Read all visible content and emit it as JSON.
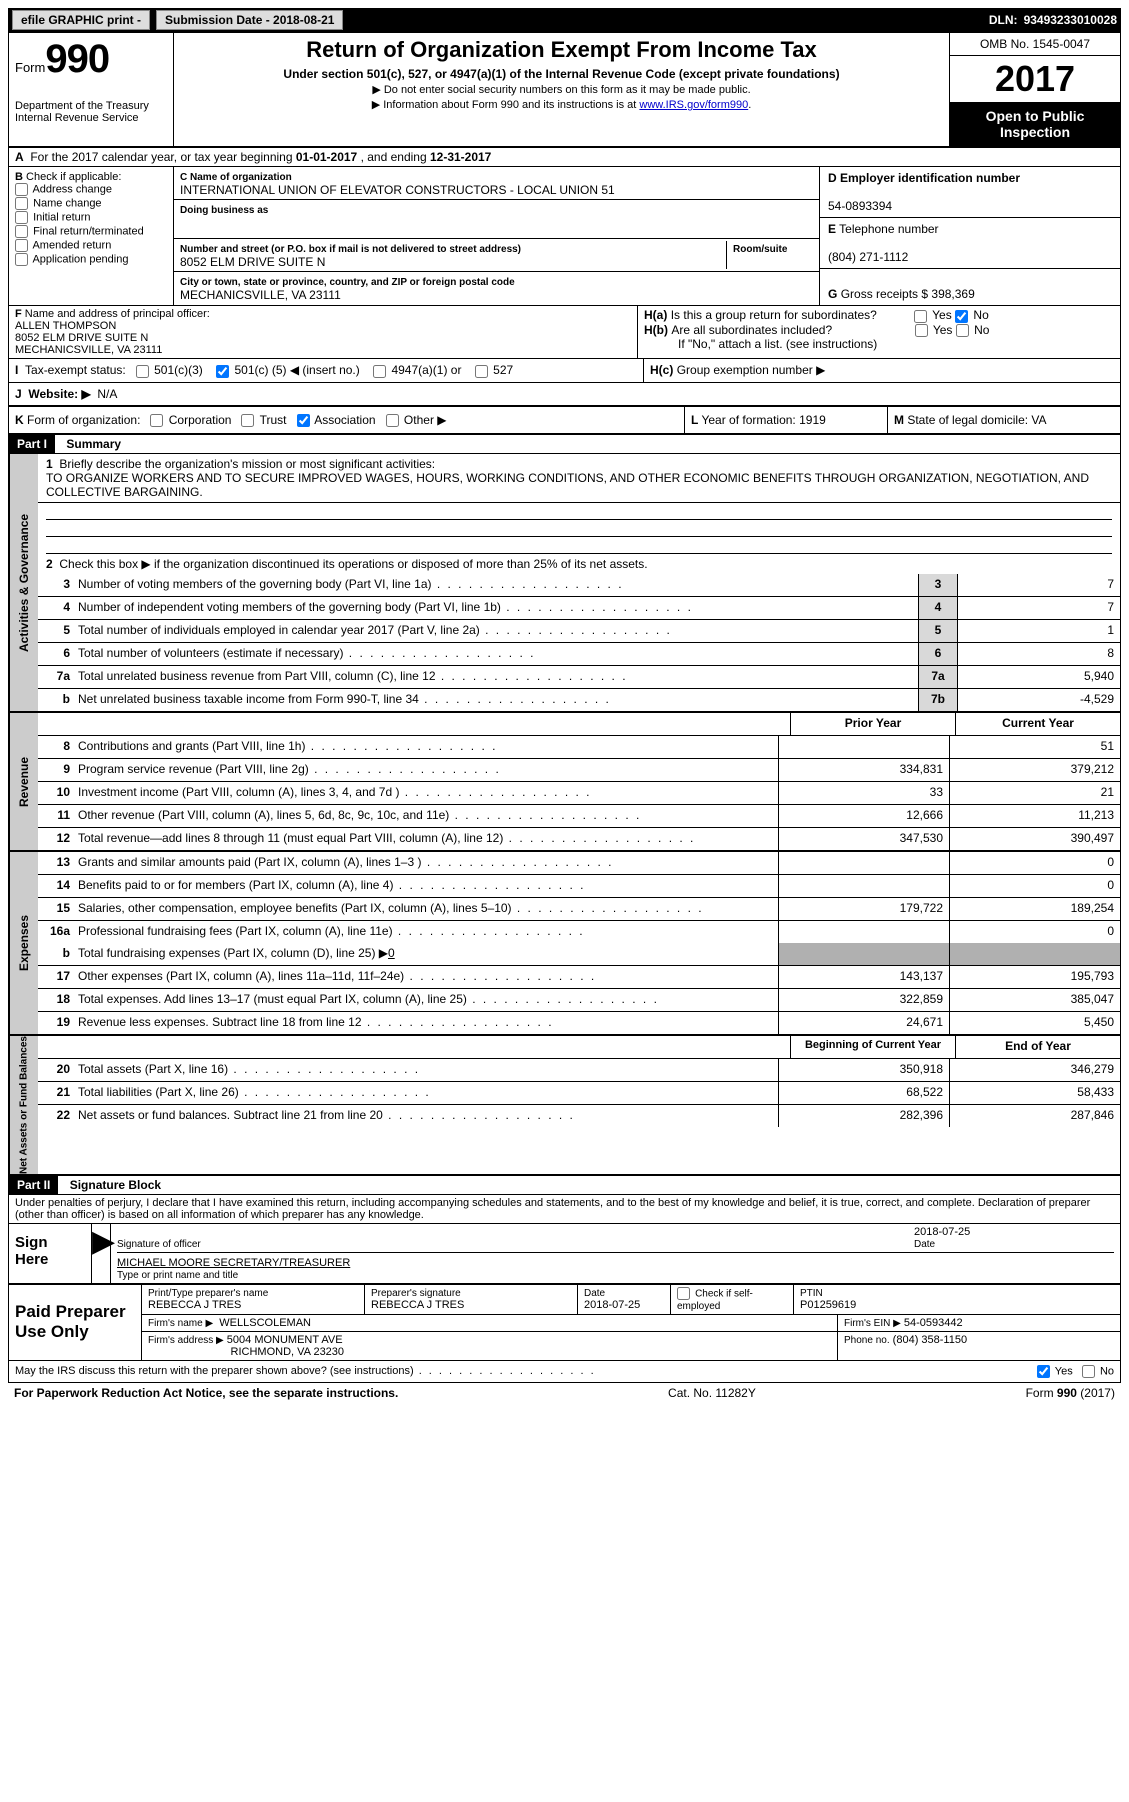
{
  "topbar": {
    "efile": "efile GRAPHIC print -",
    "subdate_lbl": "Submission Date - 2018-08-21",
    "dln_lbl": "DLN:",
    "dln": "93493233010028"
  },
  "header": {
    "form_word": "Form",
    "form_no": "990",
    "dept1": "Department of the Treasury",
    "dept2": "Internal Revenue Service",
    "title": "Return of Organization Exempt From Income Tax",
    "sub": "Under section 501(c), 527, or 4947(a)(1) of the Internal Revenue Code (except private foundations)",
    "note1": "▶ Do not enter social security numbers on this form as it may be made public.",
    "note2_pre": "▶ Information about Form 990 and its instructions is at ",
    "note2_link": "www.IRS.gov/form990",
    "omb": "OMB No. 1545-0047",
    "year": "2017",
    "open1": "Open to Public",
    "open2": "Inspection"
  },
  "A": {
    "text_pre": "For the 2017 calendar year, or tax year beginning ",
    "begin": "01-01-2017",
    "mid": " , and ending ",
    "end": "12-31-2017"
  },
  "B": {
    "hdr": "Check if applicable:",
    "opts": [
      "Address change",
      "Name change",
      "Initial return",
      "Final return/terminated",
      "Amended return",
      "Application pending"
    ]
  },
  "C": {
    "name_lbl": "Name of organization",
    "name": "INTERNATIONAL UNION OF ELEVATOR CONSTRUCTORS - LOCAL UNION 51",
    "dba_lbl": "Doing business as",
    "dba": "",
    "street_lbl": "Number and street (or P.O. box if mail is not delivered to street address)",
    "room_lbl": "Room/suite",
    "street": "8052 ELM DRIVE SUITE N",
    "city_lbl": "City or town, state or province, country, and ZIP or foreign postal code",
    "city": "MECHANICSVILLE, VA  23111"
  },
  "D": {
    "ein_lbl": "Employer identification number",
    "ein": "54-0893394",
    "tel_lbl": "Telephone number",
    "tel": "(804) 271-1112",
    "gross_lbl": "Gross receipts $",
    "gross": "398,369"
  },
  "F": {
    "lbl": "Name and address of principal officer:",
    "name": "ALLEN THOMPSON",
    "addr1": "8052 ELM DRIVE SUITE N",
    "addr2": "MECHANICSVILLE, VA  23111"
  },
  "H": {
    "a_lbl": "Is this a group return for subordinates?",
    "b_lbl": "Are all subordinates included?",
    "ifno": "If \"No,\" attach a list. (see instructions)",
    "c_lbl": "Group exemption number ▶",
    "yes": "Yes",
    "no": "No"
  },
  "I": {
    "lbl": "Tax-exempt status:",
    "o1": "501(c)(3)",
    "o2_pre": "501(c) (",
    "o2_val": "5",
    "o2_post": ") ◀ (insert no.)",
    "o3": "4947(a)(1) or",
    "o4": "527"
  },
  "J": {
    "lbl": "Website: ▶",
    "val": "N/A"
  },
  "K": {
    "lbl": "Form of organization:",
    "opts": [
      "Corporation",
      "Trust",
      "Association",
      "Other ▶"
    ],
    "checked": 2,
    "L_lbl": "Year of formation:",
    "L_val": "1919",
    "M_lbl": "State of legal domicile:",
    "M_val": "VA"
  },
  "part1": {
    "hdr": "Part I",
    "title": "Summary"
  },
  "mission": {
    "q": "Briefly describe the organization's mission or most significant activities:",
    "text": "TO ORGANIZE WORKERS AND TO SECURE IMPROVED WAGES, HOURS, WORKING CONDITIONS, AND OTHER ECONOMIC BENEFITS THROUGH ORGANIZATION, NEGOTIATION, AND COLLECTIVE BARGAINING."
  },
  "gov": {
    "side": "Activities & Governance",
    "l2": "Check this box ▶  if the organization discontinued its operations or disposed of more than 25% of its net assets.",
    "rows": [
      {
        "n": "3",
        "d": "Number of voting members of the governing body (Part VI, line 1a)",
        "c": "3",
        "v": "7"
      },
      {
        "n": "4",
        "d": "Number of independent voting members of the governing body (Part VI, line 1b)",
        "c": "4",
        "v": "7"
      },
      {
        "n": "5",
        "d": "Total number of individuals employed in calendar year 2017 (Part V, line 2a)",
        "c": "5",
        "v": "1"
      },
      {
        "n": "6",
        "d": "Total number of volunteers (estimate if necessary)",
        "c": "6",
        "v": "8"
      },
      {
        "n": "7a",
        "d": "Total unrelated business revenue from Part VIII, column (C), line 12",
        "c": "7a",
        "v": "5,940"
      },
      {
        "n": "b",
        "d": "Net unrelated business taxable income from Form 990-T, line 34",
        "c": "7b",
        "v": "-4,529"
      }
    ]
  },
  "pycy": {
    "prior": "Prior Year",
    "curr": "Current Year"
  },
  "rev": {
    "side": "Revenue",
    "rows": [
      {
        "n": "8",
        "d": "Contributions and grants (Part VIII, line 1h)",
        "p": "",
        "c": "51"
      },
      {
        "n": "9",
        "d": "Program service revenue (Part VIII, line 2g)",
        "p": "334,831",
        "c": "379,212"
      },
      {
        "n": "10",
        "d": "Investment income (Part VIII, column (A), lines 3, 4, and 7d )",
        "p": "33",
        "c": "21"
      },
      {
        "n": "11",
        "d": "Other revenue (Part VIII, column (A), lines 5, 6d, 8c, 9c, 10c, and 11e)",
        "p": "12,666",
        "c": "11,213"
      },
      {
        "n": "12",
        "d": "Total revenue—add lines 8 through 11 (must equal Part VIII, column (A), line 12)",
        "p": "347,530",
        "c": "390,497"
      }
    ]
  },
  "exp": {
    "side": "Expenses",
    "rows": [
      {
        "n": "13",
        "d": "Grants and similar amounts paid (Part IX, column (A), lines 1–3 )",
        "p": "",
        "c": "0"
      },
      {
        "n": "14",
        "d": "Benefits paid to or for members (Part IX, column (A), line 4)",
        "p": "",
        "c": "0"
      },
      {
        "n": "15",
        "d": "Salaries, other compensation, employee benefits (Part IX, column (A), lines 5–10)",
        "p": "179,722",
        "c": "189,254"
      },
      {
        "n": "16a",
        "d": "Professional fundraising fees (Part IX, column (A), line 11e)",
        "p": "",
        "c": "0"
      }
    ],
    "l16b_pre": "Total fundraising expenses (Part IX, column (D), line 25) ▶",
    "l16b_val": "0",
    "rows2": [
      {
        "n": "17",
        "d": "Other expenses (Part IX, column (A), lines 11a–11d, 11f–24e)",
        "p": "143,137",
        "c": "195,793"
      },
      {
        "n": "18",
        "d": "Total expenses. Add lines 13–17 (must equal Part IX, column (A), line 25)",
        "p": "322,859",
        "c": "385,047"
      },
      {
        "n": "19",
        "d": "Revenue less expenses. Subtract line 18 from line 12",
        "p": "24,671",
        "c": "5,450"
      }
    ]
  },
  "bcy": {
    "begin": "Beginning of Current Year",
    "end": "End of Year"
  },
  "net": {
    "side": "Net Assets or Fund Balances",
    "rows": [
      {
        "n": "20",
        "d": "Total assets (Part X, line 16)",
        "p": "350,918",
        "c": "346,279"
      },
      {
        "n": "21",
        "d": "Total liabilities (Part X, line 26)",
        "p": "68,522",
        "c": "58,433"
      },
      {
        "n": "22",
        "d": "Net assets or fund balances. Subtract line 21 from line 20",
        "p": "282,396",
        "c": "287,846"
      }
    ]
  },
  "part2": {
    "hdr": "Part II",
    "title": "Signature Block"
  },
  "sig": {
    "pen": "Under penalties of perjury, I declare that I have examined this return, including accompanying schedules and statements, and to the best of my knowledge and belief, it is true, correct, and complete. Declaration of preparer (other than officer) is based on all information of which preparer has any knowledge.",
    "signhere": "Sign Here",
    "sigoff_lbl": "Signature of officer",
    "date_lbl": "Date",
    "date": "2018-07-25",
    "name": "MICHAEL MOORE SECRETARY/TREASURER",
    "name_lbl": "Type or print name and title",
    "paid": "Paid Preparer Use Only",
    "pp_name_lbl": "Print/Type preparer's name",
    "pp_name": "REBECCA J TRES",
    "pp_sig_lbl": "Preparer's signature",
    "pp_sig": "REBECCA J TRES",
    "pp_date_lbl": "Date",
    "pp_date": "2018-07-25",
    "pp_check": "Check  if self-employed",
    "ptin_lbl": "PTIN",
    "ptin": "P01259619",
    "firm_name_lbl": "Firm's name    ▶",
    "firm_name": "WELLSCOLEMAN",
    "firm_ein_lbl": "Firm's EIN ▶",
    "firm_ein": "54-0593442",
    "firm_addr_lbl": "Firm's address ▶",
    "firm_addr1": "5004 MONUMENT AVE",
    "firm_addr2": "RICHMOND, VA  23230",
    "phone_lbl": "Phone no.",
    "phone": "(804) 358-1150",
    "irs_q": "May the IRS discuss this return with the preparer shown above? (see instructions)",
    "yes": "Yes",
    "no": "No"
  },
  "footer": {
    "pra": "For Paperwork Reduction Act Notice, see the separate instructions.",
    "cat": "Cat. No. 11282Y",
    "form": "Form 990 (2017)"
  }
}
